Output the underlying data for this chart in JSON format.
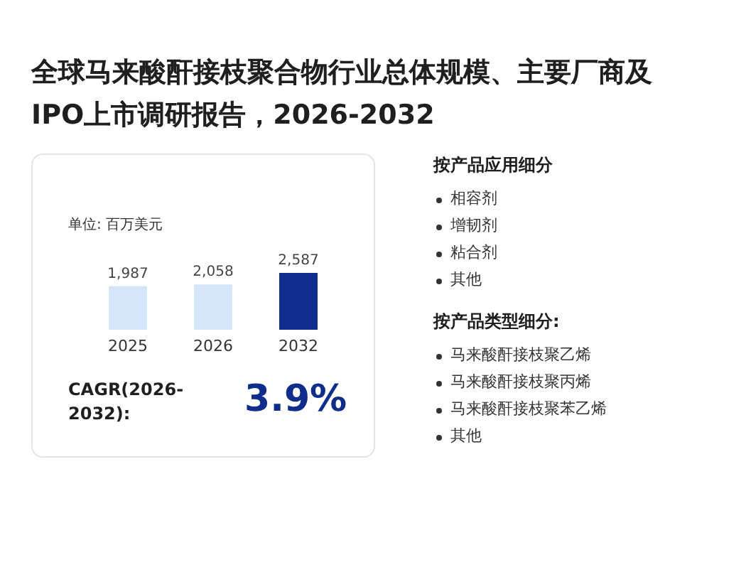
{
  "chart_data": {
    "type": "bar",
    "title": "全球马来酸酐接枝聚合物行业总体规模、主要厂商及IPO上市调研报告，2026-2032",
    "ylabel": "单位: 百万美元",
    "categories": [
      "2025",
      "2026",
      "2032"
    ],
    "values": [
      1987,
      2058,
      2587
    ],
    "value_labels": [
      "1,987",
      "2,058",
      "2,587"
    ],
    "colors": [
      "#d5e6fa",
      "#d5e6fa",
      "#0f2e8c"
    ],
    "annotations": [
      "CAGR(2026-2032):",
      "3.9%",
      "按产品应用细分",
      "相容剂",
      "增韧剂",
      "粘合剂",
      "其他",
      "按产品类型细分:",
      "马来酸酐接枝聚乙烯",
      "马来酸酐接枝聚丙烯",
      "马来酸酐接枝聚苯乙烯",
      "其他"
    ]
  }
}
